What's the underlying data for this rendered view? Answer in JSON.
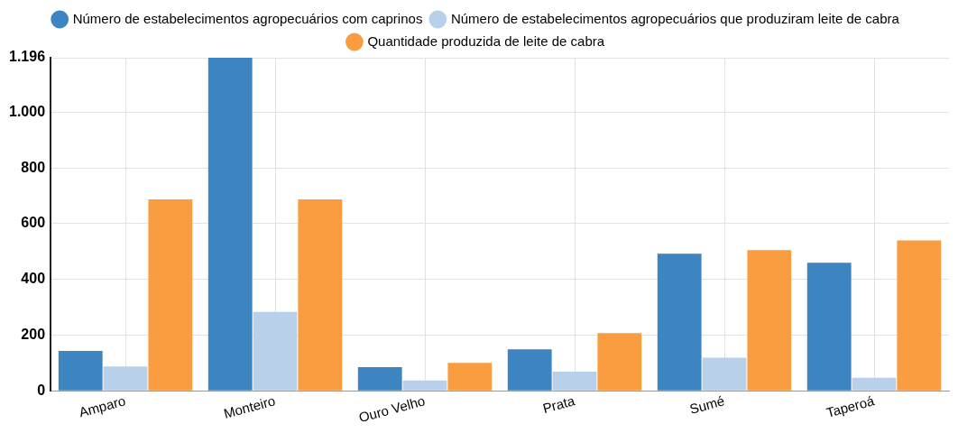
{
  "chart_data": {
    "type": "bar",
    "categories": [
      "Amparo",
      "Monteiro",
      "Ouro Velho",
      "Prata",
      "Sumé",
      "Taperoá"
    ],
    "series": [
      {
        "name": "Número de estabelecimentos agropecuários com caprinos",
        "color": "#3d85c0",
        "values": [
          143,
          1196,
          85,
          149,
          492,
          460
        ]
      },
      {
        "name": "Número de estabelecimentos agropecuários que produziram leite de cabra",
        "color": "#b9d0ea",
        "values": [
          87,
          283,
          37,
          69,
          119,
          47
        ]
      },
      {
        "name": "Quantidade produzida de leite de cabra",
        "color": "#fa9c40",
        "values": [
          687,
          687,
          100,
          207,
          505,
          540
        ]
      }
    ],
    "ylim": [
      0,
      1196
    ],
    "yticks": [
      0,
      {
        "value": 200,
        "label": "200"
      },
      {
        "value": 400,
        "label": "400"
      },
      {
        "value": 600,
        "label": "600"
      },
      {
        "value": 800,
        "label": "800"
      },
      {
        "value": 1000,
        "label": "1.000"
      },
      {
        "value": 1196,
        "label": "1.196"
      }
    ],
    "grid": true,
    "legend": "top"
  }
}
